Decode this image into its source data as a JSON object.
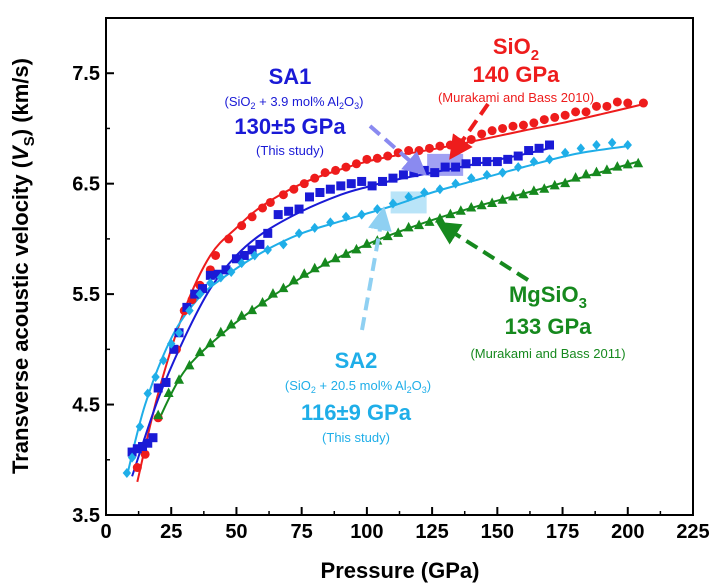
{
  "chart_data": {
    "type": "scatter",
    "xlabel": "Pressure (GPa)",
    "ylabel": "Transverse acoustic velocity (V_S) (km/s)",
    "ylabel_parts": {
      "main": "Transverse acoustic velocity (",
      "v": "V",
      "s": "S",
      "end": ") (km/s)"
    },
    "xlim": [
      0,
      225
    ],
    "ylim": [
      3.5,
      8.0
    ],
    "xticks": [
      0,
      25,
      50,
      75,
      100,
      125,
      150,
      175,
      200,
      225
    ],
    "yticks": [
      3.5,
      4.5,
      5.5,
      6.5,
      7.5
    ],
    "xtick_labels": [
      "0",
      "25",
      "50",
      "75",
      "100",
      "125",
      "150",
      "175",
      "200",
      "225"
    ],
    "ytick_labels": [
      "3.5",
      "4.5",
      "5.5",
      "6.5",
      "7.5"
    ],
    "series": [
      {
        "name": "SiO2",
        "color": "#ee1c1c",
        "marker": "circle",
        "x": [
          12,
          15,
          20,
          23,
          27,
          30,
          33,
          36,
          40,
          42,
          47,
          52,
          56,
          60,
          63,
          68,
          72,
          76,
          80,
          84,
          88,
          92,
          96,
          100,
          104,
          108,
          112,
          116,
          120,
          124,
          128,
          132,
          136,
          140,
          144,
          148,
          152,
          156,
          160,
          164,
          168,
          172,
          176,
          180,
          184,
          188,
          192,
          196,
          200,
          206
        ],
        "y": [
          3.93,
          4.05,
          4.38,
          4.7,
          5.0,
          5.35,
          5.45,
          5.58,
          5.72,
          5.85,
          6.0,
          6.12,
          6.2,
          6.28,
          6.33,
          6.4,
          6.45,
          6.5,
          6.55,
          6.6,
          6.62,
          6.65,
          6.68,
          6.72,
          6.73,
          6.75,
          6.78,
          6.8,
          6.8,
          6.82,
          6.84,
          6.85,
          6.87,
          6.9,
          6.95,
          6.98,
          7.0,
          7.02,
          7.03,
          7.05,
          7.08,
          7.1,
          7.12,
          7.15,
          7.15,
          7.2,
          7.2,
          7.24,
          7.23,
          7.23
        ],
        "fit_x": [
          12,
          20,
          30,
          40,
          50,
          60,
          75,
          90,
          100,
          110,
          125,
          140,
          160,
          175,
          190,
          206
        ],
        "fit_y": [
          3.8,
          4.6,
          5.35,
          5.85,
          6.1,
          6.3,
          6.5,
          6.63,
          6.7,
          6.75,
          6.81,
          6.88,
          6.98,
          7.05,
          7.13,
          7.22
        ]
      },
      {
        "name": "SA1",
        "color": "#1a1ad6",
        "marker": "square",
        "x": [
          10,
          12,
          14,
          16,
          18,
          20,
          23,
          26,
          28,
          31,
          34,
          37,
          40,
          43,
          46,
          50,
          53,
          56,
          59,
          62,
          66,
          70,
          74,
          78,
          82,
          86,
          90,
          94,
          98,
          102,
          106,
          110,
          114,
          118,
          122,
          126,
          130,
          134,
          138,
          142,
          146,
          150,
          154,
          158,
          162,
          166,
          170
        ],
        "y": [
          4.07,
          4.1,
          4.12,
          4.15,
          4.2,
          4.65,
          4.7,
          5.0,
          5.15,
          5.38,
          5.5,
          5.55,
          5.67,
          5.68,
          5.72,
          5.82,
          5.85,
          5.9,
          5.95,
          6.05,
          6.22,
          6.25,
          6.27,
          6.38,
          6.42,
          6.45,
          6.48,
          6.5,
          6.52,
          6.48,
          6.52,
          6.55,
          6.58,
          6.6,
          6.62,
          6.6,
          6.65,
          6.65,
          6.68,
          6.7,
          6.7,
          6.7,
          6.72,
          6.75,
          6.8,
          6.82,
          6.85
        ],
        "fit_x": [
          10,
          20,
          30,
          40,
          50,
          60,
          75,
          90,
          100,
          110,
          125,
          140,
          155,
          170
        ],
        "fit_y": [
          3.85,
          4.55,
          5.1,
          5.55,
          5.85,
          6.05,
          6.25,
          6.4,
          6.47,
          6.53,
          6.6,
          6.67,
          6.74,
          6.82
        ]
      },
      {
        "name": "SA2",
        "color": "#1faee8",
        "marker": "diamond",
        "x": [
          8,
          10,
          13,
          16,
          19,
          22,
          25,
          28,
          32,
          36,
          40,
          44,
          48,
          52,
          57,
          62,
          68,
          74,
          80,
          86,
          92,
          98,
          104,
          110,
          116,
          122,
          128,
          134,
          140,
          146,
          152,
          158,
          164,
          170,
          176,
          182,
          188,
          194,
          200
        ],
        "y": [
          3.88,
          4.02,
          4.3,
          4.6,
          4.75,
          4.9,
          5.05,
          5.15,
          5.35,
          5.5,
          5.6,
          5.65,
          5.7,
          5.78,
          5.85,
          5.9,
          5.95,
          6.05,
          6.1,
          6.15,
          6.2,
          6.22,
          6.27,
          6.32,
          6.38,
          6.42,
          6.45,
          6.5,
          6.55,
          6.58,
          6.6,
          6.65,
          6.7,
          6.72,
          6.78,
          6.82,
          6.85,
          6.87,
          6.85
        ],
        "fit_x": [
          8,
          15,
          25,
          35,
          45,
          60,
          75,
          90,
          100,
          110,
          125,
          140,
          160,
          180,
          200
        ],
        "fit_y": [
          3.85,
          4.5,
          5.1,
          5.45,
          5.65,
          5.88,
          6.05,
          6.16,
          6.23,
          6.3,
          6.42,
          6.52,
          6.65,
          6.77,
          6.84
        ]
      },
      {
        "name": "MgSiO3",
        "color": "#16891e",
        "marker": "triangle",
        "x": [
          20,
          24,
          28,
          32,
          36,
          40,
          44,
          48,
          52,
          56,
          60,
          64,
          68,
          72,
          76,
          80,
          84,
          88,
          92,
          96,
          100,
          104,
          108,
          112,
          116,
          120,
          124,
          128,
          132,
          136,
          140,
          144,
          148,
          152,
          156,
          160,
          164,
          168,
          172,
          176,
          180,
          184,
          188,
          192,
          196,
          200,
          204
        ],
        "y": [
          4.4,
          4.6,
          4.72,
          4.85,
          4.97,
          5.05,
          5.15,
          5.22,
          5.3,
          5.35,
          5.42,
          5.5,
          5.55,
          5.62,
          5.68,
          5.73,
          5.78,
          5.82,
          5.86,
          5.9,
          5.95,
          5.98,
          6.02,
          6.05,
          6.1,
          6.12,
          6.15,
          6.18,
          6.22,
          6.25,
          6.28,
          6.3,
          6.32,
          6.35,
          6.38,
          6.4,
          6.43,
          6.45,
          6.48,
          6.5,
          6.55,
          6.58,
          6.6,
          6.62,
          6.65,
          6.67,
          6.68
        ],
        "fit_x": [
          20,
          30,
          45,
          60,
          80,
          100,
          120,
          140,
          160,
          180,
          204
        ],
        "fit_y": [
          4.35,
          4.8,
          5.15,
          5.42,
          5.72,
          5.95,
          6.13,
          6.28,
          6.41,
          6.54,
          6.7
        ]
      }
    ],
    "annotations": {
      "sio2": {
        "title_main": "SiO",
        "title_sub": "2",
        "modulus": "140 GPa",
        "ref": "(Murakami and Bass 2010)",
        "color": "#ee1c1c"
      },
      "sa1": {
        "title": "SA1",
        "comp_a": "(SiO",
        "comp_b": "2",
        "comp_c": " + 3.9 mol% Al",
        "comp_d": "2",
        "comp_e": "O",
        "comp_f": "3",
        "comp_g": ")",
        "modulus": "130±5 GPa",
        "ref": "(This study)",
        "color": "#1a1ad6"
      },
      "sa2": {
        "title": "SA2",
        "comp_a": "(SiO",
        "comp_b": "2",
        "comp_c": " + 20.5 mol% Al",
        "comp_d": "2",
        "comp_e": "O",
        "comp_f": "3",
        "comp_g": ")",
        "modulus": "116±9 GPa",
        "ref": "(This study)",
        "color": "#1faee8"
      },
      "mgsio3": {
        "title_main": "MgSiO",
        "title_sub": "3",
        "modulus": "133 GPa",
        "ref": "(Murakami and Bass 2011)",
        "color": "#16891e"
      }
    },
    "highlight_markers": [
      {
        "series": "SA1",
        "pressure": 130,
        "velocity": 6.67,
        "color": "#8a8af0"
      },
      {
        "series": "SA2",
        "pressure": 116,
        "velocity": 6.33,
        "color": "#a8ddf6"
      }
    ]
  }
}
